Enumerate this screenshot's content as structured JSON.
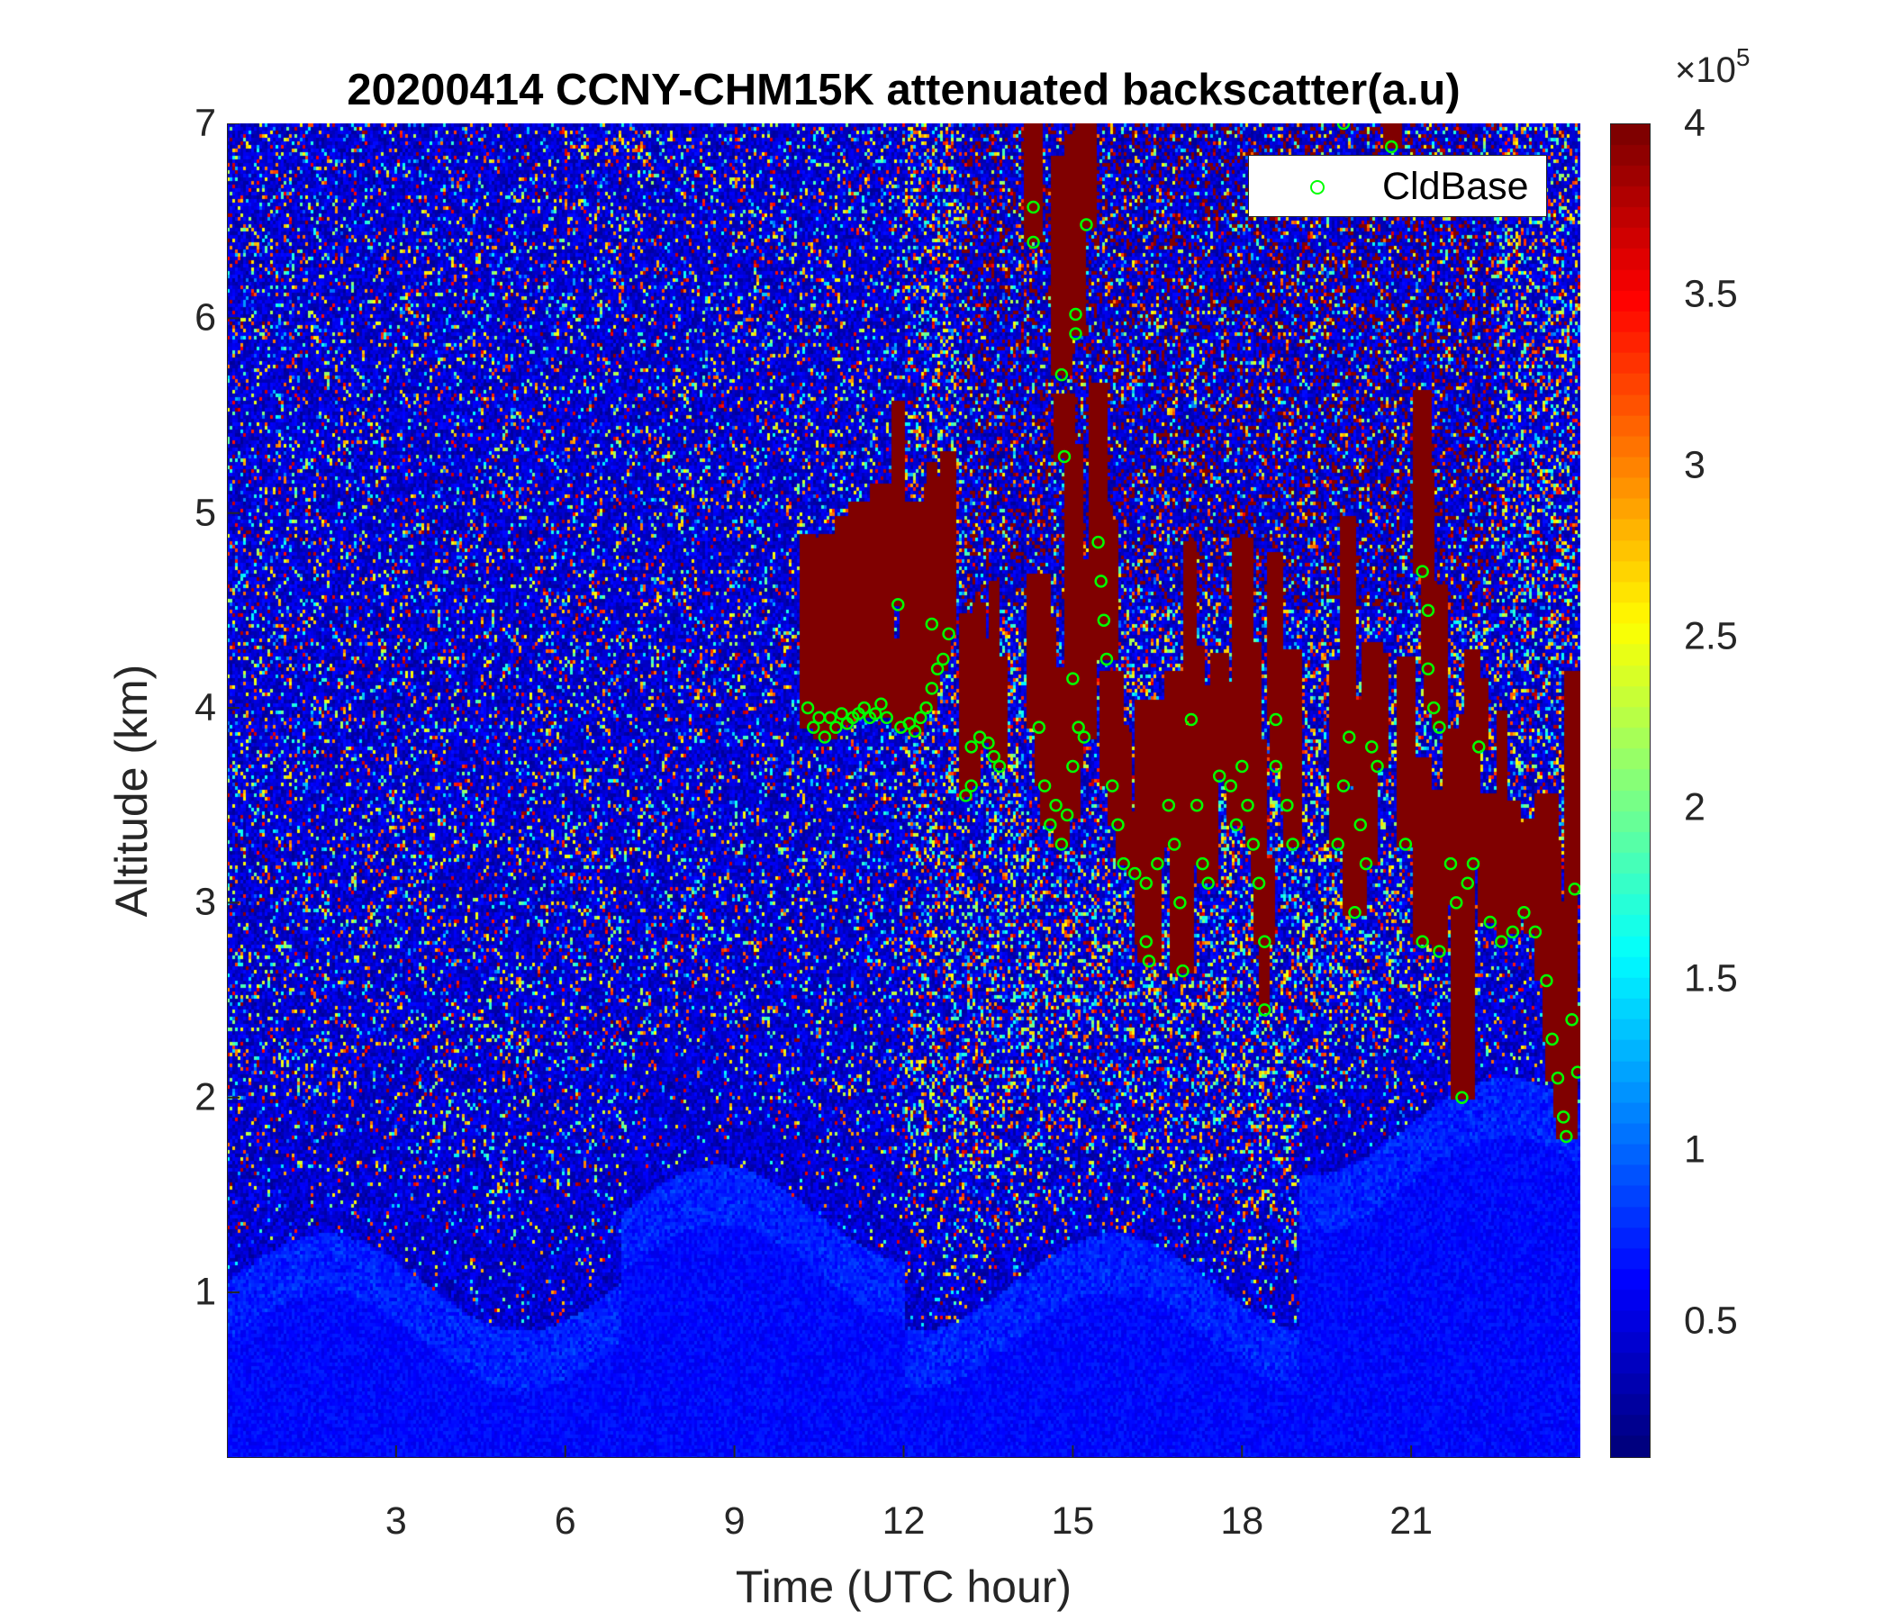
{
  "chart_data": {
    "type": "heatmap",
    "title": "20200414 CCNY-CHM15K attenuated backscatter(a.u)",
    "xlabel": "Time (UTC hour)",
    "ylabel": "Altitude (km)",
    "xlim": [
      0,
      24
    ],
    "ylim": [
      0.15,
      7
    ],
    "xticks": [
      "3",
      "6",
      "9",
      "12",
      "15",
      "18",
      "21"
    ],
    "yticks": [
      "1",
      "2",
      "3",
      "4",
      "5",
      "6",
      "7"
    ],
    "colorbar": {
      "colormap": "jet",
      "clim": [
        0.1,
        4
      ],
      "ticks": [
        "0.5",
        "1",
        "1.5",
        "2",
        "2.5",
        "3",
        "3.5",
        "4"
      ],
      "multiplier": "×10",
      "exponent": "5"
    },
    "legend": {
      "position": "top-right",
      "entries": [
        "CldBase"
      ]
    },
    "series": [
      {
        "name": "CldBase",
        "type": "scatter",
        "marker": "circle",
        "color": "#00ff00",
        "points": [
          [
            10.3,
            4.0
          ],
          [
            10.4,
            3.9
          ],
          [
            10.5,
            3.95
          ],
          [
            10.6,
            3.85
          ],
          [
            10.7,
            3.95
          ],
          [
            10.8,
            3.9
          ],
          [
            10.9,
            3.97
          ],
          [
            11.0,
            3.92
          ],
          [
            11.1,
            3.95
          ],
          [
            11.2,
            3.97
          ],
          [
            11.3,
            4.0
          ],
          [
            11.4,
            3.95
          ],
          [
            11.5,
            3.97
          ],
          [
            11.6,
            4.02
          ],
          [
            11.7,
            3.95
          ],
          [
            11.9,
            4.53
          ],
          [
            11.95,
            3.9
          ],
          [
            12.1,
            3.92
          ],
          [
            12.2,
            3.88
          ],
          [
            12.3,
            3.95
          ],
          [
            12.4,
            4.0
          ],
          [
            12.5,
            4.1
          ],
          [
            12.6,
            4.2
          ],
          [
            12.7,
            4.25
          ],
          [
            12.5,
            4.43
          ],
          [
            12.8,
            4.38
          ],
          [
            13.1,
            3.55
          ],
          [
            13.2,
            3.6
          ],
          [
            13.2,
            3.8
          ],
          [
            13.35,
            3.85
          ],
          [
            13.5,
            3.82
          ],
          [
            13.6,
            3.75
          ],
          [
            13.7,
            3.7
          ],
          [
            14.3,
            6.57
          ],
          [
            14.3,
            6.39
          ],
          [
            14.4,
            3.9
          ],
          [
            14.5,
            3.6
          ],
          [
            14.6,
            3.4
          ],
          [
            14.7,
            3.5
          ],
          [
            14.8,
            3.3
          ],
          [
            14.9,
            3.45
          ],
          [
            15.0,
            3.7
          ],
          [
            14.8,
            5.71
          ],
          [
            14.85,
            5.29
          ],
          [
            15.05,
            6.02
          ],
          [
            15.05,
            5.92
          ],
          [
            15.24,
            6.48
          ],
          [
            15.0,
            4.15
          ],
          [
            15.1,
            3.9
          ],
          [
            15.2,
            3.85
          ],
          [
            15.45,
            4.85
          ],
          [
            15.5,
            4.65
          ],
          [
            15.55,
            4.45
          ],
          [
            15.6,
            4.25
          ],
          [
            15.7,
            3.6
          ],
          [
            15.8,
            3.4
          ],
          [
            15.9,
            3.2
          ],
          [
            16.1,
            3.15
          ],
          [
            16.3,
            3.1
          ],
          [
            16.3,
            2.8
          ],
          [
            16.35,
            2.7
          ],
          [
            16.5,
            3.2
          ],
          [
            16.7,
            3.5
          ],
          [
            16.8,
            3.3
          ],
          [
            16.9,
            3.0
          ],
          [
            16.95,
            2.65
          ],
          [
            17.1,
            3.94
          ],
          [
            17.2,
            3.5
          ],
          [
            17.3,
            3.2
          ],
          [
            17.4,
            3.1
          ],
          [
            17.6,
            3.65
          ],
          [
            17.8,
            3.6
          ],
          [
            17.9,
            3.4
          ],
          [
            18.0,
            3.7
          ],
          [
            18.1,
            3.5
          ],
          [
            18.2,
            3.3
          ],
          [
            18.3,
            3.1
          ],
          [
            18.4,
            2.8
          ],
          [
            18.4,
            2.45
          ],
          [
            18.6,
            3.94
          ],
          [
            18.6,
            3.7
          ],
          [
            18.8,
            3.5
          ],
          [
            18.9,
            3.3
          ],
          [
            19.7,
            3.3
          ],
          [
            19.8,
            3.6
          ],
          [
            19.9,
            3.85
          ],
          [
            19.8,
            7.0
          ],
          [
            20.0,
            2.95
          ],
          [
            20.1,
            3.4
          ],
          [
            20.2,
            3.2
          ],
          [
            20.3,
            3.8
          ],
          [
            20.4,
            3.7
          ],
          [
            20.65,
            6.88
          ],
          [
            20.9,
            3.3
          ],
          [
            21.2,
            4.7
          ],
          [
            21.3,
            4.5
          ],
          [
            21.3,
            4.2
          ],
          [
            21.4,
            4.0
          ],
          [
            21.5,
            3.9
          ],
          [
            21.2,
            2.8
          ],
          [
            21.5,
            2.75
          ],
          [
            21.7,
            3.2
          ],
          [
            21.8,
            3.0
          ],
          [
            21.9,
            2.0
          ],
          [
            22.0,
            3.1
          ],
          [
            22.1,
            3.2
          ],
          [
            22.2,
            3.8
          ],
          [
            22.4,
            2.9
          ],
          [
            22.6,
            2.8
          ],
          [
            22.8,
            2.85
          ],
          [
            23.0,
            2.95
          ],
          [
            23.2,
            2.85
          ],
          [
            23.4,
            2.6
          ],
          [
            23.5,
            2.3
          ],
          [
            23.6,
            2.1
          ],
          [
            23.7,
            1.9
          ],
          [
            23.75,
            1.8
          ],
          [
            23.85,
            2.4
          ],
          [
            23.9,
            3.07
          ],
          [
            23.95,
            2.13
          ]
        ]
      }
    ]
  }
}
